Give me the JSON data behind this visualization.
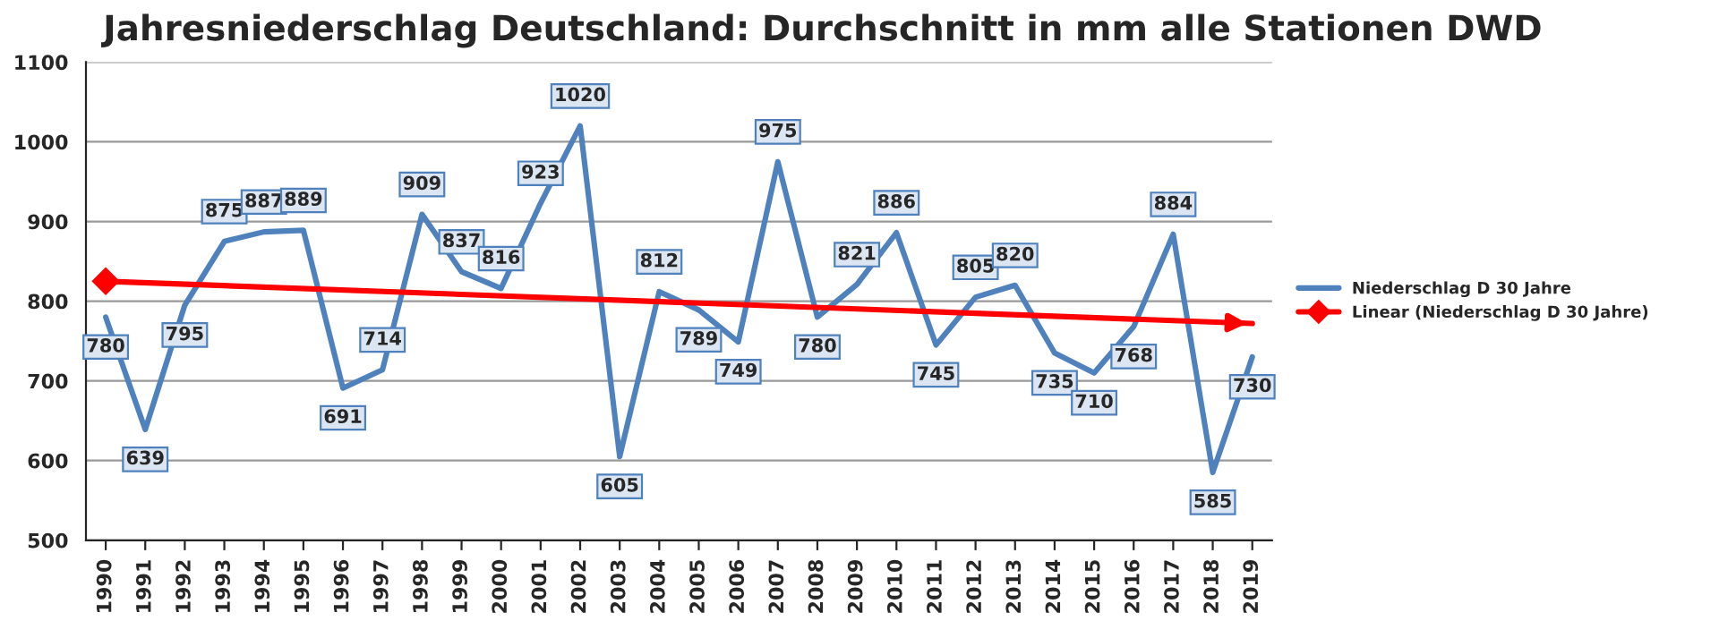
{
  "chart_data": {
    "type": "line",
    "title": "Jahresniederschlag Deutschland: Durchschnitt in mm alle Stationen DWD",
    "categories": [
      "1990",
      "1991",
      "1992",
      "1993",
      "1994",
      "1995",
      "1996",
      "1997",
      "1998",
      "1999",
      "2000",
      "2001",
      "2002",
      "2003",
      "2004",
      "2005",
      "2006",
      "2007",
      "2008",
      "2009",
      "2010",
      "2011",
      "2012",
      "2013",
      "2014",
      "2015",
      "2016",
      "2017",
      "2018",
      "2019"
    ],
    "series": [
      {
        "name": "Niederschlag D 30 Jahre",
        "color": "#4f81bd",
        "values": [
          780,
          639,
          795,
          875,
          887,
          889,
          691,
          714,
          909,
          837,
          816,
          923,
          1020,
          605,
          812,
          789,
          749,
          975,
          780,
          821,
          886,
          745,
          805,
          820,
          735,
          710,
          768,
          884,
          585,
          730
        ],
        "data_labels": true
      },
      {
        "name": "Linear (Niederschlag D 30 Jahre)",
        "type": "line",
        "color": "#ff0000",
        "values": [
          825,
          null,
          null,
          null,
          null,
          null,
          null,
          null,
          null,
          null,
          null,
          null,
          null,
          null,
          null,
          null,
          null,
          null,
          null,
          null,
          null,
          null,
          null,
          null,
          null,
          null,
          null,
          null,
          null,
          772
        ],
        "marker": "diamond"
      }
    ],
    "ylim": [
      500,
      1100
    ],
    "yticks": [
      500,
      600,
      700,
      800,
      900,
      1000,
      1100
    ],
    "grid": "y",
    "legend": "right"
  }
}
